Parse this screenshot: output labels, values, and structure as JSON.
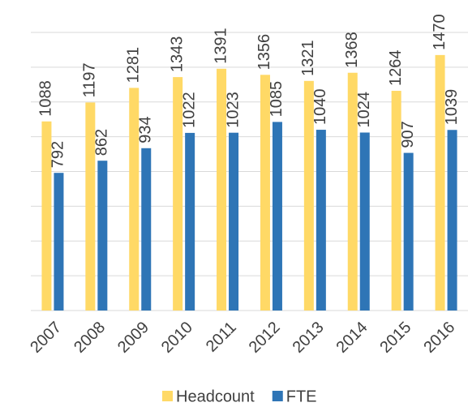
{
  "chart_data": {
    "type": "bar",
    "categories": [
      "2007",
      "2008",
      "2009",
      "2010",
      "2011",
      "2012",
      "2013",
      "2014",
      "2015",
      "2016"
    ],
    "series": [
      {
        "name": "Headcount",
        "color": "#ffd966",
        "values": [
          1088,
          1197,
          1281,
          1343,
          1391,
          1356,
          1321,
          1368,
          1264,
          1470
        ]
      },
      {
        "name": "FTE",
        "color": "#2e75b6",
        "values": [
          792,
          862,
          934,
          1022,
          1023,
          1085,
          1040,
          1024,
          907,
          1039
        ]
      }
    ],
    "ylim": [
      0,
      1600
    ],
    "yticks": [
      0,
      200,
      400,
      600,
      800,
      1000,
      1200,
      1400,
      1600
    ],
    "grid": true,
    "legend": "bottom"
  }
}
